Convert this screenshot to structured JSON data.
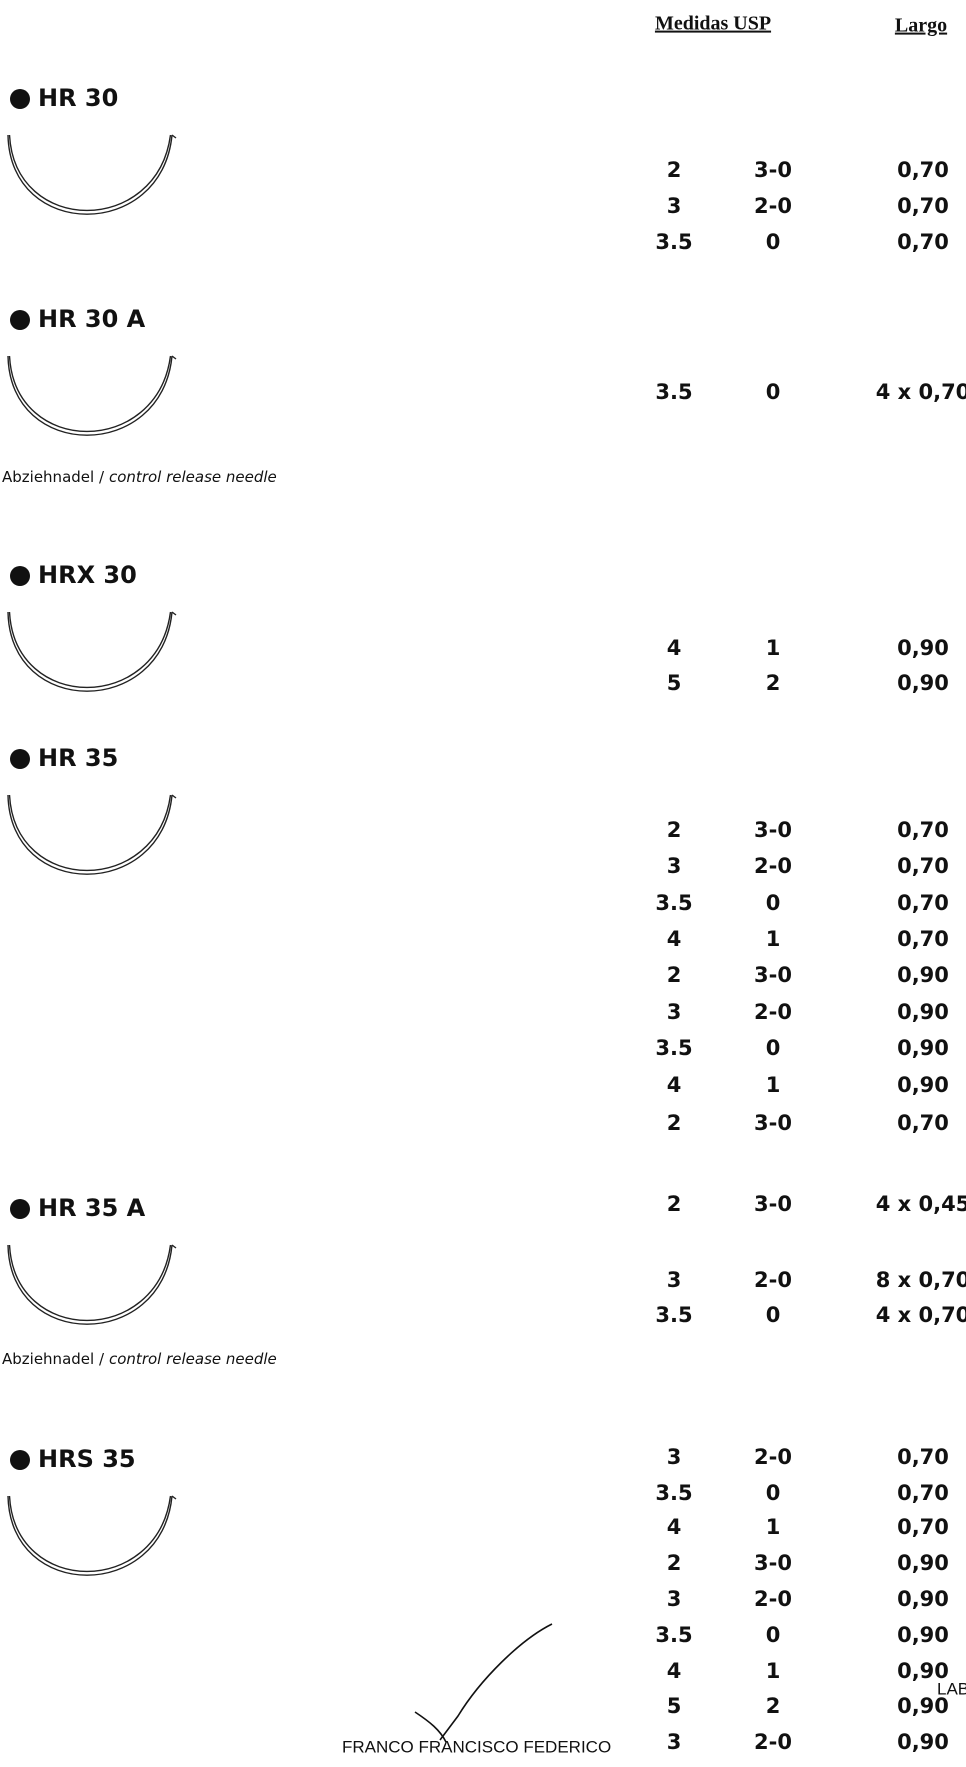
{
  "header": {
    "usp": "Medidas USP",
    "largo": "Largo"
  },
  "sections": [
    {
      "title": "HR 30",
      "rows": [
        [
          "2",
          "3-0",
          "0,70"
        ],
        [
          "3",
          "2-0",
          "0,70"
        ],
        [
          "3.5",
          "0",
          "0,70"
        ]
      ]
    },
    {
      "title": "HR 30 A",
      "rows": [
        [
          "3.5",
          "0",
          "4 x 0,70"
        ]
      ],
      "note": {
        "de": "Abziehnadel /",
        "en": "control release needle"
      }
    },
    {
      "title": "HRX 30",
      "rows": [
        [
          "4",
          "1",
          "0,90"
        ],
        [
          "5",
          "2",
          "0,90"
        ]
      ]
    },
    {
      "title": "HR 35",
      "rows": [
        [
          "2",
          "3-0",
          "0,70"
        ],
        [
          "3",
          "2-0",
          "0,70"
        ],
        [
          "3.5",
          "0",
          "0,70"
        ],
        [
          "4",
          "1",
          "0,70"
        ],
        [
          "2",
          "3-0",
          "0,90"
        ],
        [
          "3",
          "2-0",
          "0,90"
        ],
        [
          "3.5",
          "0",
          "0,90"
        ],
        [
          "4",
          "1",
          "0,90"
        ],
        [
          "2",
          "3-0",
          "0,70"
        ]
      ]
    },
    {
      "title": "HR 35 A",
      "rows": [
        [
          "2",
          "3-0",
          "4 x 0,45"
        ],
        [
          "3",
          "2-0",
          "8 x 0,70"
        ],
        [
          "3.5",
          "0",
          "4 x 0,70"
        ]
      ],
      "note": {
        "de": "Abziehnadel /",
        "en": "control release needle"
      }
    },
    {
      "title": "HRS 35",
      "rows": [
        [
          "3",
          "2-0",
          "0,70"
        ],
        [
          "3.5",
          "0",
          "0,70"
        ],
        [
          "4",
          "1",
          "0,70"
        ],
        [
          "2",
          "3-0",
          "0,90"
        ],
        [
          "3",
          "2-0",
          "0,90"
        ],
        [
          "3.5",
          "0",
          "0,90"
        ],
        [
          "4",
          "1",
          "0,90"
        ],
        [
          "5",
          "2",
          "0,90"
        ],
        [
          "3",
          "2-0",
          "0,90"
        ]
      ]
    }
  ],
  "signature": {
    "name": "FRANCO FRANCISCO FEDERICO",
    "stamp": "LABOR"
  }
}
